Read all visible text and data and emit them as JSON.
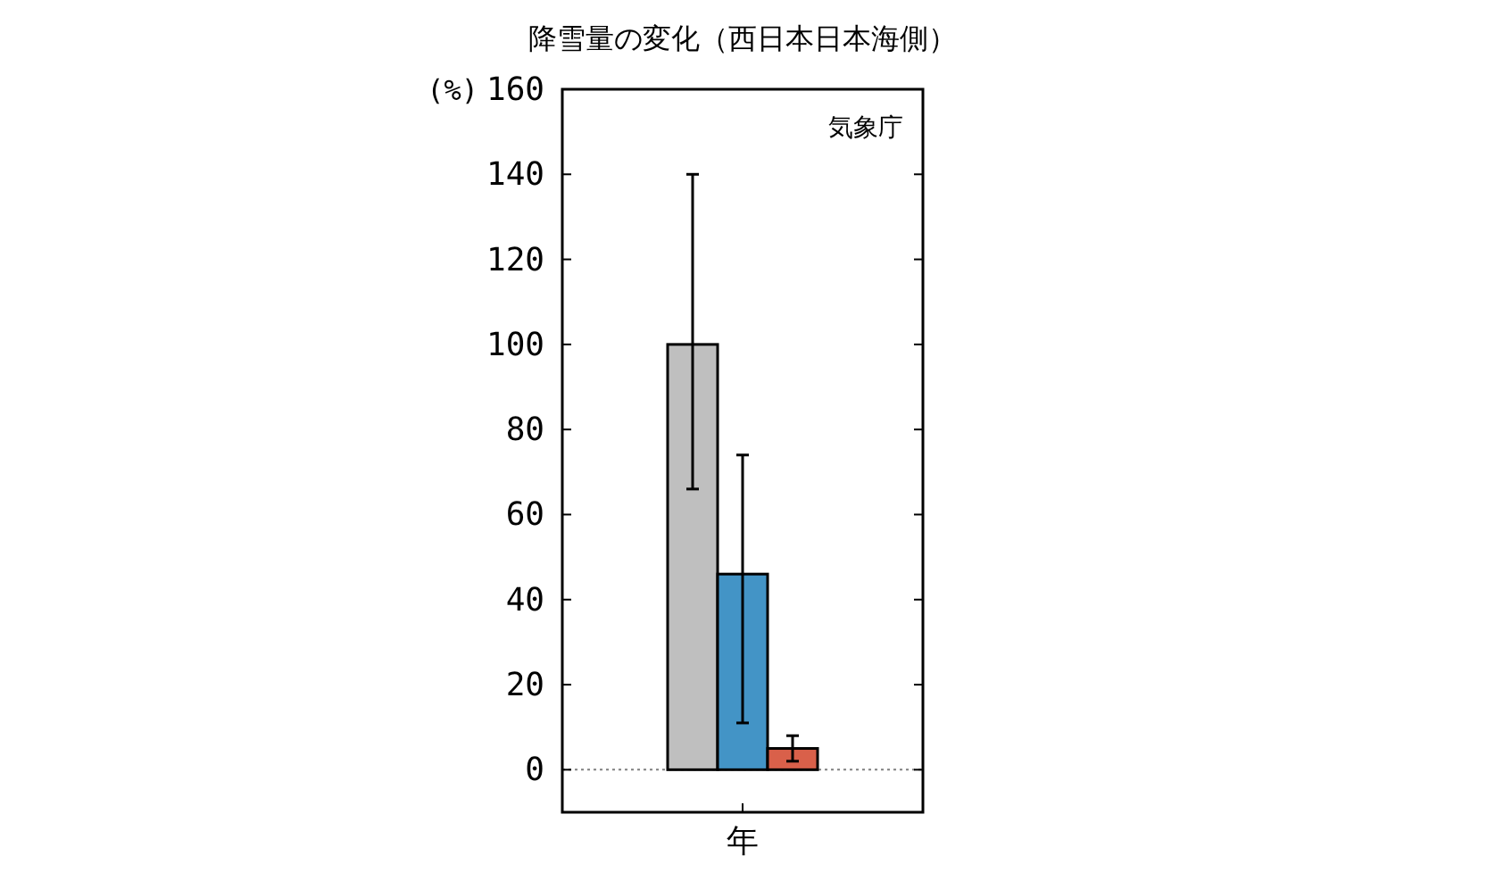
{
  "chart_data": {
    "type": "bar",
    "title": "降雪量の変化（西日本日本海側）",
    "ylabel": "(%)",
    "categories": [
      "年"
    ],
    "series": [
      {
        "color": "#bfbfbf",
        "values": [
          100
        ],
        "errors": [
          [
            66,
            140
          ]
        ]
      },
      {
        "color": "#4394c6",
        "values": [
          46
        ],
        "errors": [
          [
            11,
            74
          ]
        ]
      },
      {
        "color": "#d9604a",
        "values": [
          5
        ],
        "errors": [
          [
            2,
            8
          ]
        ]
      }
    ],
    "ylim": [
      -10,
      160
    ],
    "yticks": [
      0,
      20,
      40,
      60,
      80,
      100,
      120,
      140,
      160
    ],
    "ref_lines": [
      {
        "axis": "y",
        "value": 0,
        "line_style": "dotted",
        "color": "#808080"
      }
    ],
    "annotations": [
      "気象庁"
    ],
    "grid": false
  }
}
